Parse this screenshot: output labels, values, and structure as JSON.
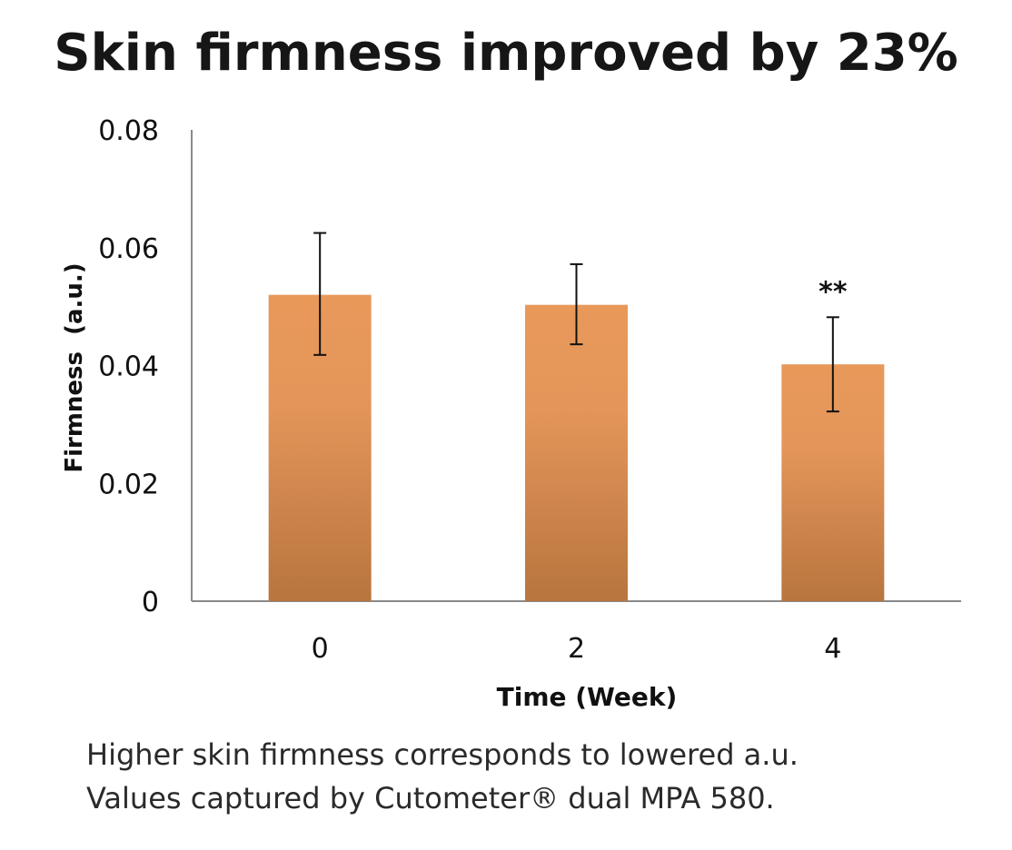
{
  "chart_data": {
    "type": "bar",
    "title": "Skin firmness improved by 23%",
    "xlabel": "Time (Week)",
    "ylabel": "Firmness  (a.u.)",
    "categories": [
      "0",
      "2",
      "4"
    ],
    "values": [
      0.052,
      0.0503,
      0.0402
    ],
    "error_high": [
      0.0625,
      0.0572,
      0.0482
    ],
    "error_low": [
      0.0418,
      0.0436,
      0.0322
    ],
    "annotations": [
      "",
      "",
      "**"
    ],
    "ylim": [
      0,
      0.08
    ],
    "yticks": [
      0,
      0.02,
      0.04,
      0.06,
      0.08
    ],
    "ytick_labels": [
      "0",
      "0.02",
      "0.04",
      "0.06",
      "0.08"
    ],
    "grid": false,
    "colors": {
      "bar_top": "#e8995a",
      "bar_bottom": "#b8753e",
      "axis": "#8a8a8a",
      "error": "#111111"
    }
  },
  "caption": {
    "line1": "Higher skin firmness corresponds to lowered a.u.",
    "line2": "Values captured by Cutometer® dual MPA 580."
  }
}
